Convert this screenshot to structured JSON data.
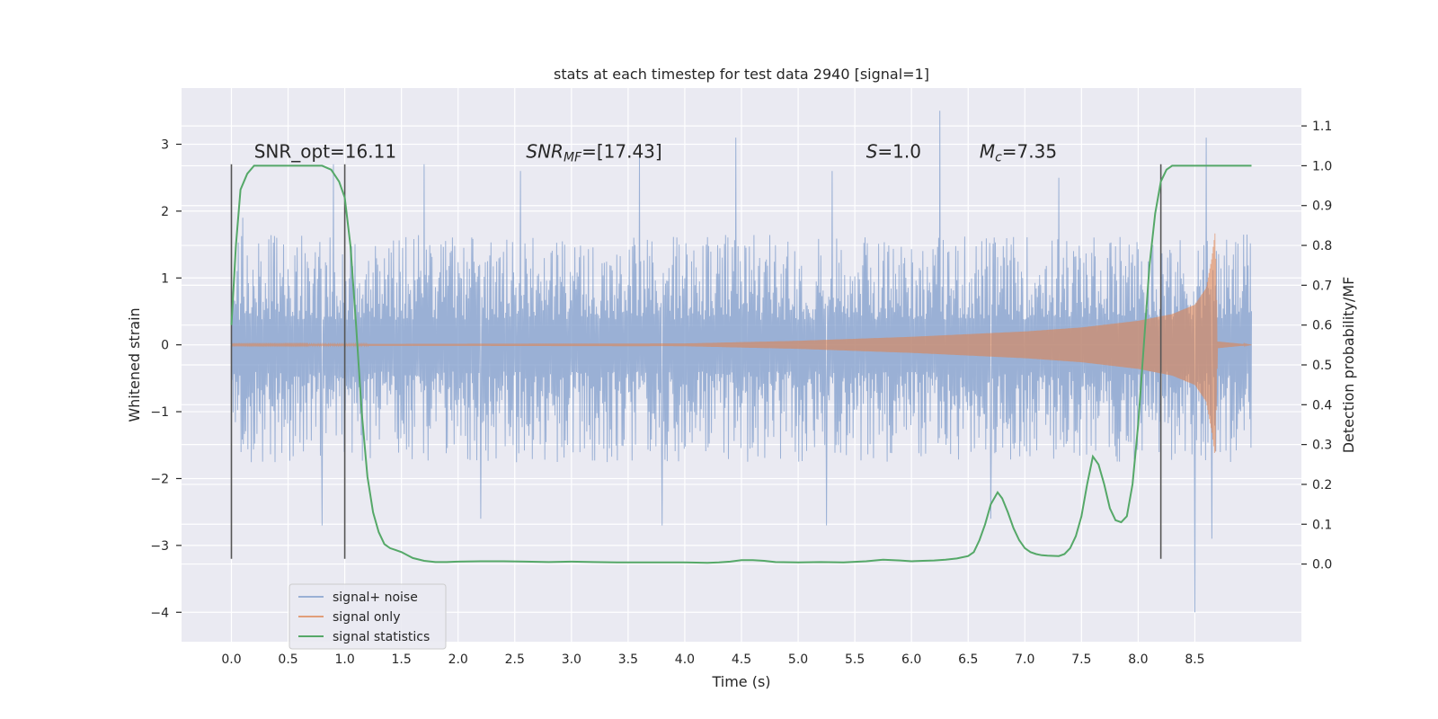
{
  "chart_data": {
    "type": "line",
    "title": "stats at each timestep for test data 2940 [signal=1]",
    "xlabel": "Time (s)",
    "ylabel": "Whitened strain",
    "y2label": "Detection probability/MF",
    "xlim": [
      -0.44,
      9.44
    ],
    "ylim": [
      -4.44,
      3.84
    ],
    "y2lim": [
      -0.195,
      1.195
    ],
    "x_ticks": [
      0.0,
      0.5,
      1.0,
      1.5,
      2.0,
      2.5,
      3.0,
      3.5,
      4.0,
      4.5,
      5.0,
      5.5,
      6.0,
      6.5,
      7.0,
      7.5,
      8.0,
      8.5
    ],
    "x_tick_labels": [
      "0.0",
      "0.5",
      "1.0",
      "1.5",
      "2.0",
      "2.5",
      "3.0",
      "3.5",
      "4.0",
      "4.5",
      "5.0",
      "5.5",
      "6.0",
      "6.5",
      "7.0",
      "7.5",
      "8.0",
      "8.5"
    ],
    "y_ticks": [
      -4,
      -3,
      -2,
      -1,
      0,
      1,
      2,
      3
    ],
    "y_tick_labels": [
      "−4",
      "−3",
      "−2",
      "−1",
      "0",
      "1",
      "2",
      "3"
    ],
    "y2_ticks": [
      0.0,
      0.1,
      0.2,
      0.3,
      0.4,
      0.5,
      0.6,
      0.7,
      0.8,
      0.9,
      1.0,
      1.1
    ],
    "y2_tick_labels": [
      "0.0",
      "0.1",
      "0.2",
      "0.3",
      "0.4",
      "0.5",
      "0.6",
      "0.7",
      "0.8",
      "0.9",
      "1.0",
      "1.1"
    ],
    "grid": true,
    "legend_position": "lower-left",
    "annotations": [
      {
        "text": "SNR_opt=16.11",
        "x": 0.2,
        "y": 2.8
      },
      {
        "text": "SNR_MF=[17.43]",
        "x": 2.6,
        "y": 2.8
      },
      {
        "text": "S=1.0",
        "x": 5.6,
        "y": 2.8
      },
      {
        "text": "M_c=7.35",
        "x": 6.6,
        "y": 2.8
      }
    ],
    "vlines": [
      {
        "x": 0.0,
        "y_from": -3.2,
        "y_to": 2.7
      },
      {
        "x": 1.0,
        "y_from": -3.2,
        "y_to": 2.7
      },
      {
        "x": 8.2,
        "y_from": -3.2,
        "y_to": 2.7
      }
    ],
    "series": [
      {
        "name": "signal+ noise",
        "color": "#7f9ccb",
        "axis": "left",
        "x_range": [
          0.0,
          9.0
        ],
        "envelope": {
          "upper_typical": 1.5,
          "lower_typical": -1.6
        },
        "spikes": [
          {
            "x": 0.1,
            "y": 1.9
          },
          {
            "x": 0.9,
            "y": 2.7
          },
          {
            "x": 1.7,
            "y": 2.7
          },
          {
            "x": 2.55,
            "y": 2.6
          },
          {
            "x": 3.6,
            "y": 2.8
          },
          {
            "x": 4.45,
            "y": 3.1
          },
          {
            "x": 5.3,
            "y": 2.6
          },
          {
            "x": 6.25,
            "y": 3.5
          },
          {
            "x": 7.3,
            "y": 2.5
          },
          {
            "x": 8.6,
            "y": 3.1
          },
          {
            "x": 0.8,
            "y": -2.7
          },
          {
            "x": 2.2,
            "y": -2.6
          },
          {
            "x": 3.8,
            "y": -2.7
          },
          {
            "x": 5.25,
            "y": -2.7
          },
          {
            "x": 6.7,
            "y": -2.6
          },
          {
            "x": 8.5,
            "y": -4.0
          },
          {
            "x": 8.65,
            "y": -2.9
          }
        ]
      },
      {
        "name": "signal only",
        "color": "#dd8452",
        "axis": "left",
        "x_range": [
          0.0,
          9.0
        ],
        "amplitude_points": [
          [
            0.0,
            0.01
          ],
          [
            4.0,
            0.02
          ],
          [
            5.0,
            0.06
          ],
          [
            6.0,
            0.12
          ],
          [
            7.0,
            0.2
          ],
          [
            7.5,
            0.26
          ],
          [
            8.0,
            0.36
          ],
          [
            8.3,
            0.46
          ],
          [
            8.5,
            0.6
          ],
          [
            8.6,
            0.85
          ],
          [
            8.65,
            1.3
          ],
          [
            8.68,
            1.7
          ],
          [
            8.7,
            0.05
          ],
          [
            9.0,
            0.0
          ]
        ]
      },
      {
        "name": "signal statistics",
        "color": "#55a868",
        "axis": "right",
        "x": [
          0.0,
          0.04,
          0.08,
          0.14,
          0.2,
          0.3,
          0.4,
          0.5,
          0.6,
          0.7,
          0.8,
          0.88,
          0.95,
          1.0,
          1.05,
          1.1,
          1.15,
          1.2,
          1.25,
          1.3,
          1.35,
          1.4,
          1.45,
          1.5,
          1.6,
          1.7,
          1.8,
          1.9,
          2.0,
          2.2,
          2.4,
          2.6,
          2.8,
          3.0,
          3.2,
          3.4,
          3.6,
          3.8,
          4.0,
          4.2,
          4.3,
          4.4,
          4.5,
          4.6,
          4.7,
          4.8,
          5.0,
          5.2,
          5.4,
          5.6,
          5.75,
          5.9,
          6.0,
          6.1,
          6.2,
          6.3,
          6.4,
          6.5,
          6.55,
          6.6,
          6.65,
          6.7,
          6.76,
          6.8,
          6.85,
          6.9,
          6.95,
          7.0,
          7.05,
          7.1,
          7.15,
          7.2,
          7.3,
          7.35,
          7.4,
          7.45,
          7.5,
          7.55,
          7.6,
          7.65,
          7.7,
          7.75,
          7.8,
          7.85,
          7.9,
          7.95,
          8.0,
          8.05,
          8.1,
          8.15,
          8.2,
          8.25,
          8.3,
          8.35,
          8.4,
          8.5,
          8.6,
          8.8,
          9.0
        ],
        "values": [
          0.6,
          0.8,
          0.94,
          0.98,
          1.0,
          1.0,
          1.0,
          1.0,
          1.0,
          1.0,
          1.0,
          0.99,
          0.96,
          0.92,
          0.8,
          0.6,
          0.38,
          0.22,
          0.13,
          0.08,
          0.05,
          0.04,
          0.035,
          0.03,
          0.015,
          0.008,
          0.005,
          0.005,
          0.006,
          0.007,
          0.007,
          0.006,
          0.005,
          0.006,
          0.005,
          0.004,
          0.004,
          0.004,
          0.004,
          0.003,
          0.004,
          0.006,
          0.01,
          0.01,
          0.008,
          0.005,
          0.004,
          0.005,
          0.004,
          0.007,
          0.011,
          0.009,
          0.007,
          0.008,
          0.009,
          0.011,
          0.014,
          0.02,
          0.03,
          0.06,
          0.1,
          0.15,
          0.18,
          0.165,
          0.13,
          0.09,
          0.06,
          0.04,
          0.03,
          0.025,
          0.022,
          0.021,
          0.02,
          0.025,
          0.04,
          0.07,
          0.12,
          0.2,
          0.27,
          0.25,
          0.2,
          0.14,
          0.11,
          0.105,
          0.12,
          0.2,
          0.35,
          0.55,
          0.75,
          0.88,
          0.96,
          0.99,
          1.0,
          1.0,
          1.0,
          1.0,
          1.0,
          1.0,
          1.0
        ]
      }
    ]
  }
}
